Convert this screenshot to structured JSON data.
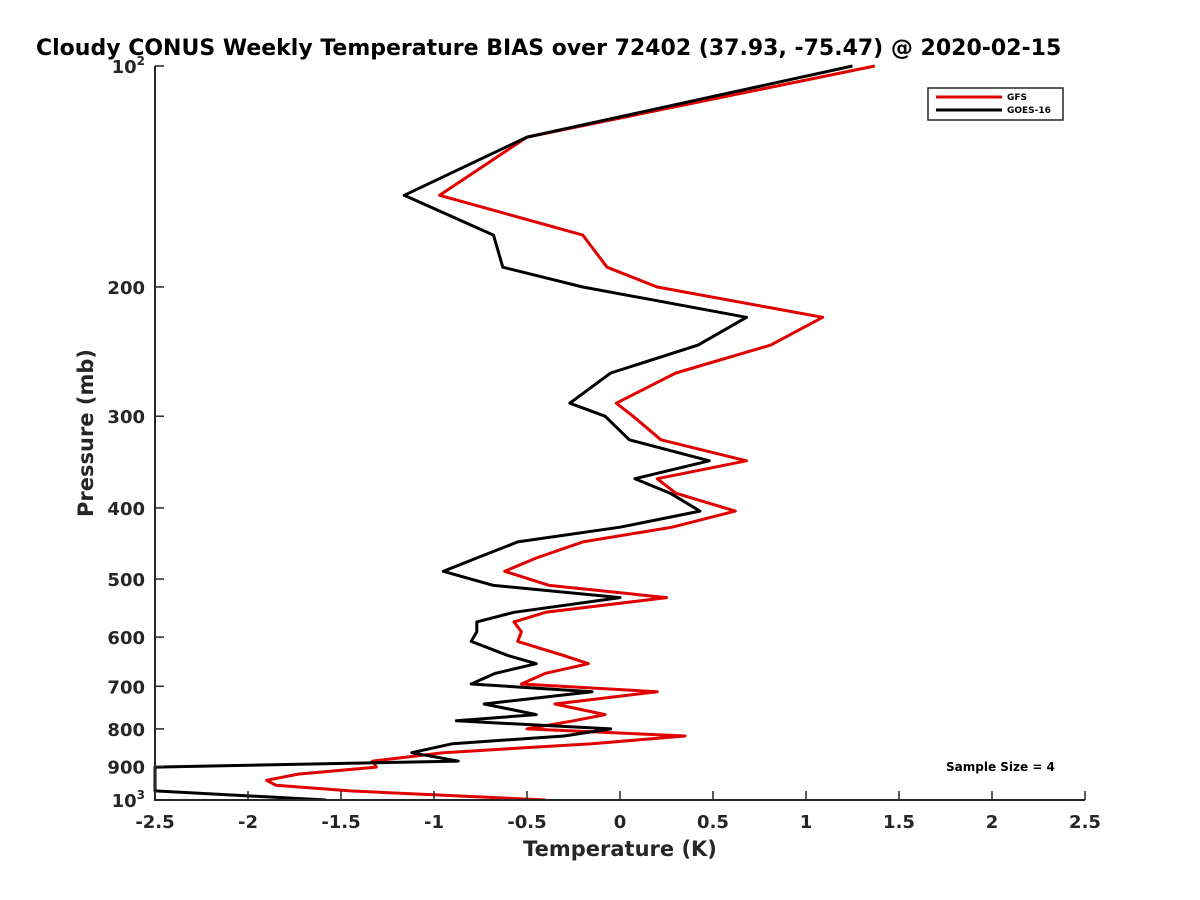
{
  "chart_data": {
    "type": "line",
    "title": "Cloudy CONUS Weekly Temperature BIAS over 72402 (37.93, -75.47) @ 2020-02-15",
    "xlabel": "Temperature (K)",
    "ylabel": "Pressure (mb)",
    "xlim": [
      -2.5,
      2.5
    ],
    "ylim": [
      100,
      1000
    ],
    "y_scale": "log",
    "y_reversed": true,
    "grid": false,
    "legend_position": "top-right",
    "annotation": "Sample Size = 4",
    "x_ticks": [
      {
        "value": -2.5,
        "label": "-2.5"
      },
      {
        "value": -2,
        "label": "-2"
      },
      {
        "value": -1.5,
        "label": "-1.5"
      },
      {
        "value": -1,
        "label": "-1"
      },
      {
        "value": -0.5,
        "label": "-0.5"
      },
      {
        "value": 0,
        "label": "0"
      },
      {
        "value": 0.5,
        "label": "0.5"
      },
      {
        "value": 1,
        "label": "1"
      },
      {
        "value": 1.5,
        "label": "1.5"
      },
      {
        "value": 2,
        "label": "2"
      },
      {
        "value": 2.5,
        "label": "2.5"
      }
    ],
    "y_ticks": [
      {
        "value": 100,
        "base": "10",
        "sup": "2"
      },
      {
        "value": 200,
        "base": "200",
        "sup": ""
      },
      {
        "value": 300,
        "base": "300",
        "sup": ""
      },
      {
        "value": 400,
        "base": "400",
        "sup": ""
      },
      {
        "value": 500,
        "base": "500",
        "sup": ""
      },
      {
        "value": 600,
        "base": "600",
        "sup": ""
      },
      {
        "value": 700,
        "base": "700",
        "sup": ""
      },
      {
        "value": 800,
        "base": "800",
        "sup": ""
      },
      {
        "value": 900,
        "base": "900",
        "sup": ""
      },
      {
        "value": 1000,
        "base": "10",
        "sup": "3"
      }
    ],
    "series": [
      {
        "name": "GFS",
        "color": "#e00000",
        "points": [
          [
            1.37,
            100
          ],
          [
            -0.5,
            125
          ],
          [
            -0.97,
            150
          ],
          [
            -0.2,
            170
          ],
          [
            -0.07,
            188
          ],
          [
            0.2,
            200
          ],
          [
            1.09,
            220
          ],
          [
            0.81,
            240
          ],
          [
            0.3,
            262
          ],
          [
            -0.02,
            288
          ],
          [
            0.07,
            300
          ],
          [
            0.22,
            323
          ],
          [
            0.68,
            345
          ],
          [
            0.2,
            365
          ],
          [
            0.3,
            382
          ],
          [
            0.62,
            404
          ],
          [
            0.28,
            425
          ],
          [
            -0.2,
            445
          ],
          [
            -0.45,
            468
          ],
          [
            -0.62,
            488
          ],
          [
            -0.38,
            510
          ],
          [
            0.25,
            530
          ],
          [
            -0.4,
            555
          ],
          [
            -0.57,
            572
          ],
          [
            -0.53,
            590
          ],
          [
            -0.55,
            608
          ],
          [
            -0.3,
            636
          ],
          [
            -0.17,
            652
          ],
          [
            -0.4,
            672
          ],
          [
            -0.53,
            695
          ],
          [
            0.2,
            712
          ],
          [
            -0.35,
            740
          ],
          [
            -0.08,
            765
          ],
          [
            -0.25,
            780
          ],
          [
            -0.5,
            800
          ],
          [
            0.35,
            818
          ],
          [
            -0.15,
            838
          ],
          [
            -0.95,
            862
          ],
          [
            -1.33,
            885
          ],
          [
            -1.31,
            902
          ],
          [
            -1.73,
            922
          ],
          [
            -1.9,
            940
          ],
          [
            -1.85,
            955
          ],
          [
            -1.45,
            972
          ],
          [
            -0.4,
            1000
          ]
        ]
      },
      {
        "name": "GOES-16",
        "color": "#000000",
        "points": [
          [
            1.25,
            100
          ],
          [
            -0.5,
            125
          ],
          [
            -1.16,
            150
          ],
          [
            -0.68,
            170
          ],
          [
            -0.63,
            188
          ],
          [
            -0.2,
            200
          ],
          [
            0.68,
            220
          ],
          [
            0.42,
            240
          ],
          [
            -0.05,
            262
          ],
          [
            -0.27,
            288
          ],
          [
            -0.08,
            300
          ],
          [
            0.05,
            323
          ],
          [
            0.48,
            345
          ],
          [
            0.08,
            365
          ],
          [
            0.27,
            382
          ],
          [
            0.43,
            404
          ],
          [
            0,
            425
          ],
          [
            -0.55,
            445
          ],
          [
            -0.77,
            468
          ],
          [
            -0.95,
            488
          ],
          [
            -0.68,
            510
          ],
          [
            0,
            530
          ],
          [
            -0.57,
            555
          ],
          [
            -0.77,
            572
          ],
          [
            -0.77,
            590
          ],
          [
            -0.8,
            608
          ],
          [
            -0.6,
            636
          ],
          [
            -0.45,
            652
          ],
          [
            -0.67,
            672
          ],
          [
            -0.8,
            695
          ],
          [
            -0.15,
            712
          ],
          [
            -0.73,
            740
          ],
          [
            -0.45,
            765
          ],
          [
            -0.88,
            780
          ],
          [
            -0.05,
            800
          ],
          [
            -0.3,
            818
          ],
          [
            -0.9,
            838
          ],
          [
            -1.12,
            862
          ],
          [
            -0.87,
            885
          ],
          [
            -2.5,
            902
          ],
          [
            -2.5,
            922
          ],
          [
            -2.5,
            940
          ],
          [
            -2.5,
            955
          ],
          [
            -2.5,
            972
          ],
          [
            -1.58,
            1000
          ]
        ]
      }
    ]
  }
}
